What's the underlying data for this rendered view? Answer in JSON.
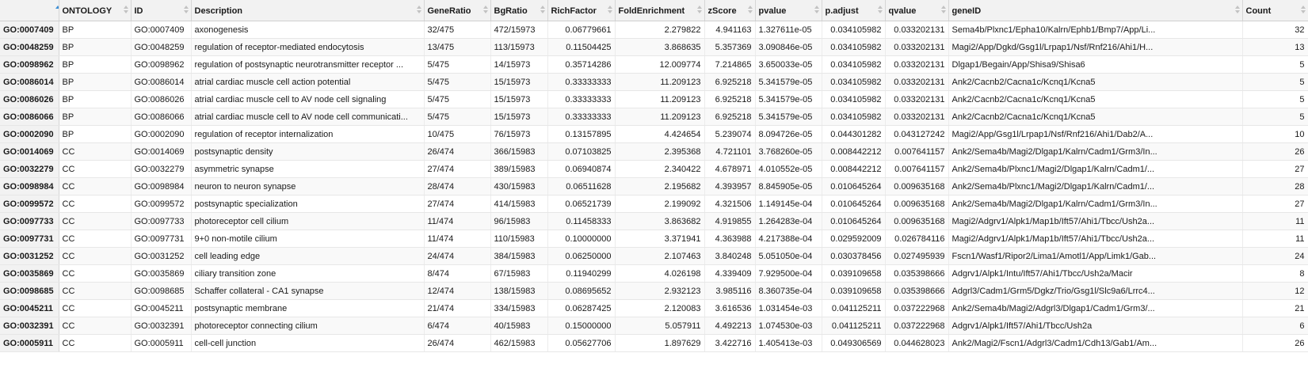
{
  "columns": [
    {
      "key": "rowname",
      "label": "",
      "align": "left",
      "width": 74
    },
    {
      "key": "ontology",
      "label": "ONTOLOGY",
      "align": "left",
      "width": 91
    },
    {
      "key": "id",
      "label": "ID",
      "align": "left",
      "width": 76
    },
    {
      "key": "description",
      "label": "Description",
      "align": "left",
      "width": 294
    },
    {
      "key": "generatio",
      "label": "GeneRatio",
      "align": "left",
      "width": 84
    },
    {
      "key": "bgratio",
      "label": "BgRatio",
      "align": "left",
      "width": 72
    },
    {
      "key": "richfactor",
      "label": "RichFactor",
      "align": "right",
      "width": 85
    },
    {
      "key": "foldenrichment",
      "label": "FoldEnrichment",
      "align": "right",
      "width": 113
    },
    {
      "key": "zscore",
      "label": "zScore",
      "align": "right",
      "width": 64
    },
    {
      "key": "pvalue",
      "label": "pvalue",
      "align": "left",
      "width": 84
    },
    {
      "key": "padjust",
      "label": "p.adjust",
      "align": "right",
      "width": 80
    },
    {
      "key": "qvalue",
      "label": "qvalue",
      "align": "right",
      "width": 80
    },
    {
      "key": "geneid",
      "label": "geneID",
      "align": "left",
      "width": 371
    },
    {
      "key": "count",
      "label": "Count",
      "align": "right",
      "width": 83
    }
  ],
  "rows": [
    {
      "rowname": "GO:0007409",
      "ontology": "BP",
      "id": "GO:0007409",
      "description": "axonogenesis",
      "generatio": "32/475",
      "bgratio": "472/15973",
      "richfactor": "0.06779661",
      "foldenrichment": "2.279822",
      "zscore": "4.941163",
      "pvalue": "1.327611e-05",
      "padjust": "0.034105982",
      "qvalue": "0.033202131",
      "geneid": "Sema4b/Plxnc1/Epha10/Kalrn/Ephb1/Bmp7/App/Li...",
      "count": "32"
    },
    {
      "rowname": "GO:0048259",
      "ontology": "BP",
      "id": "GO:0048259",
      "description": "regulation of receptor-mediated endocytosis",
      "generatio": "13/475",
      "bgratio": "113/15973",
      "richfactor": "0.11504425",
      "foldenrichment": "3.868635",
      "zscore": "5.357369",
      "pvalue": "3.090846e-05",
      "padjust": "0.034105982",
      "qvalue": "0.033202131",
      "geneid": "Magi2/App/Dgkd/Gsg1l/Lrpap1/Nsf/Rnf216/Ahi1/H...",
      "count": "13"
    },
    {
      "rowname": "GO:0098962",
      "ontology": "BP",
      "id": "GO:0098962",
      "description": "regulation of postsynaptic neurotransmitter receptor ...",
      "generatio": "5/475",
      "bgratio": "14/15973",
      "richfactor": "0.35714286",
      "foldenrichment": "12.009774",
      "zscore": "7.214865",
      "pvalue": "3.650033e-05",
      "padjust": "0.034105982",
      "qvalue": "0.033202131",
      "geneid": "Dlgap1/Begain/App/Shisa9/Shisa6",
      "count": "5"
    },
    {
      "rowname": "GO:0086014",
      "ontology": "BP",
      "id": "GO:0086014",
      "description": "atrial cardiac muscle cell action potential",
      "generatio": "5/475",
      "bgratio": "15/15973",
      "richfactor": "0.33333333",
      "foldenrichment": "11.209123",
      "zscore": "6.925218",
      "pvalue": "5.341579e-05",
      "padjust": "0.034105982",
      "qvalue": "0.033202131",
      "geneid": "Ank2/Cacnb2/Cacna1c/Kcnq1/Kcna5",
      "count": "5"
    },
    {
      "rowname": "GO:0086026",
      "ontology": "BP",
      "id": "GO:0086026",
      "description": "atrial cardiac muscle cell to AV node cell signaling",
      "generatio": "5/475",
      "bgratio": "15/15973",
      "richfactor": "0.33333333",
      "foldenrichment": "11.209123",
      "zscore": "6.925218",
      "pvalue": "5.341579e-05",
      "padjust": "0.034105982",
      "qvalue": "0.033202131",
      "geneid": "Ank2/Cacnb2/Cacna1c/Kcnq1/Kcna5",
      "count": "5"
    },
    {
      "rowname": "GO:0086066",
      "ontology": "BP",
      "id": "GO:0086066",
      "description": "atrial cardiac muscle cell to AV node cell communicati...",
      "generatio": "5/475",
      "bgratio": "15/15973",
      "richfactor": "0.33333333",
      "foldenrichment": "11.209123",
      "zscore": "6.925218",
      "pvalue": "5.341579e-05",
      "padjust": "0.034105982",
      "qvalue": "0.033202131",
      "geneid": "Ank2/Cacnb2/Cacna1c/Kcnq1/Kcna5",
      "count": "5"
    },
    {
      "rowname": "GO:0002090",
      "ontology": "BP",
      "id": "GO:0002090",
      "description": "regulation of receptor internalization",
      "generatio": "10/475",
      "bgratio": "76/15973",
      "richfactor": "0.13157895",
      "foldenrichment": "4.424654",
      "zscore": "5.239074",
      "pvalue": "8.094726e-05",
      "padjust": "0.044301282",
      "qvalue": "0.043127242",
      "geneid": "Magi2/App/Gsg1l/Lrpap1/Nsf/Rnf216/Ahi1/Dab2/A...",
      "count": "10"
    },
    {
      "rowname": "GO:0014069",
      "ontology": "CC",
      "id": "GO:0014069",
      "description": "postsynaptic density",
      "generatio": "26/474",
      "bgratio": "366/15983",
      "richfactor": "0.07103825",
      "foldenrichment": "2.395368",
      "zscore": "4.721101",
      "pvalue": "3.768260e-05",
      "padjust": "0.008442212",
      "qvalue": "0.007641157",
      "geneid": "Ank2/Sema4b/Magi2/Dlgap1/Kalrn/Cadm1/Grm3/In...",
      "count": "26"
    },
    {
      "rowname": "GO:0032279",
      "ontology": "CC",
      "id": "GO:0032279",
      "description": "asymmetric synapse",
      "generatio": "27/474",
      "bgratio": "389/15983",
      "richfactor": "0.06940874",
      "foldenrichment": "2.340422",
      "zscore": "4.678971",
      "pvalue": "4.010552e-05",
      "padjust": "0.008442212",
      "qvalue": "0.007641157",
      "geneid": "Ank2/Sema4b/Plxnc1/Magi2/Dlgap1/Kalrn/Cadm1/...",
      "count": "27"
    },
    {
      "rowname": "GO:0098984",
      "ontology": "CC",
      "id": "GO:0098984",
      "description": "neuron to neuron synapse",
      "generatio": "28/474",
      "bgratio": "430/15983",
      "richfactor": "0.06511628",
      "foldenrichment": "2.195682",
      "zscore": "4.393957",
      "pvalue": "8.845905e-05",
      "padjust": "0.010645264",
      "qvalue": "0.009635168",
      "geneid": "Ank2/Sema4b/Plxnc1/Magi2/Dlgap1/Kalrn/Cadm1/...",
      "count": "28"
    },
    {
      "rowname": "GO:0099572",
      "ontology": "CC",
      "id": "GO:0099572",
      "description": "postsynaptic specialization",
      "generatio": "27/474",
      "bgratio": "414/15983",
      "richfactor": "0.06521739",
      "foldenrichment": "2.199092",
      "zscore": "4.321506",
      "pvalue": "1.149145e-04",
      "padjust": "0.010645264",
      "qvalue": "0.009635168",
      "geneid": "Ank2/Sema4b/Magi2/Dlgap1/Kalrn/Cadm1/Grm3/In...",
      "count": "27"
    },
    {
      "rowname": "GO:0097733",
      "ontology": "CC",
      "id": "GO:0097733",
      "description": "photoreceptor cell cilium",
      "generatio": "11/474",
      "bgratio": "96/15983",
      "richfactor": "0.11458333",
      "foldenrichment": "3.863682",
      "zscore": "4.919855",
      "pvalue": "1.264283e-04",
      "padjust": "0.010645264",
      "qvalue": "0.009635168",
      "geneid": "Magi2/Adgrv1/Alpk1/Map1b/Ift57/Ahi1/Tbcc/Ush2a...",
      "count": "11"
    },
    {
      "rowname": "GO:0097731",
      "ontology": "CC",
      "id": "GO:0097731",
      "description": "9+0 non-motile cilium",
      "generatio": "11/474",
      "bgratio": "110/15983",
      "richfactor": "0.10000000",
      "foldenrichment": "3.371941",
      "zscore": "4.363988",
      "pvalue": "4.217388e-04",
      "padjust": "0.029592009",
      "qvalue": "0.026784116",
      "geneid": "Magi2/Adgrv1/Alpk1/Map1b/Ift57/Ahi1/Tbcc/Ush2a...",
      "count": "11"
    },
    {
      "rowname": "GO:0031252",
      "ontology": "CC",
      "id": "GO:0031252",
      "description": "cell leading edge",
      "generatio": "24/474",
      "bgratio": "384/15983",
      "richfactor": "0.06250000",
      "foldenrichment": "2.107463",
      "zscore": "3.840248",
      "pvalue": "5.051050e-04",
      "padjust": "0.030378456",
      "qvalue": "0.027495939",
      "geneid": "Fscn1/Wasf1/Ripor2/Lima1/Amotl1/App/Limk1/Gab...",
      "count": "24"
    },
    {
      "rowname": "GO:0035869",
      "ontology": "CC",
      "id": "GO:0035869",
      "description": "ciliary transition zone",
      "generatio": "8/474",
      "bgratio": "67/15983",
      "richfactor": "0.11940299",
      "foldenrichment": "4.026198",
      "zscore": "4.339409",
      "pvalue": "7.929500e-04",
      "padjust": "0.039109658",
      "qvalue": "0.035398666",
      "geneid": "Adgrv1/Alpk1/Intu/Ift57/Ahi1/Tbcc/Ush2a/Macir",
      "count": "8"
    },
    {
      "rowname": "GO:0098685",
      "ontology": "CC",
      "id": "GO:0098685",
      "description": "Schaffer collateral - CA1 synapse",
      "generatio": "12/474",
      "bgratio": "138/15983",
      "richfactor": "0.08695652",
      "foldenrichment": "2.932123",
      "zscore": "3.985116",
      "pvalue": "8.360735e-04",
      "padjust": "0.039109658",
      "qvalue": "0.035398666",
      "geneid": "Adgrl3/Cadm1/Grm5/Dgkz/Trio/Gsg1l/Slc9a6/Lrrc4...",
      "count": "12"
    },
    {
      "rowname": "GO:0045211",
      "ontology": "CC",
      "id": "GO:0045211",
      "description": "postsynaptic membrane",
      "generatio": "21/474",
      "bgratio": "334/15983",
      "richfactor": "0.06287425",
      "foldenrichment": "2.120083",
      "zscore": "3.616536",
      "pvalue": "1.031454e-03",
      "padjust": "0.041125211",
      "qvalue": "0.037222968",
      "geneid": "Ank2/Sema4b/Magi2/Adgrl3/Dlgap1/Cadm1/Grm3/...",
      "count": "21"
    },
    {
      "rowname": "GO:0032391",
      "ontology": "CC",
      "id": "GO:0032391",
      "description": "photoreceptor connecting cilium",
      "generatio": "6/474",
      "bgratio": "40/15983",
      "richfactor": "0.15000000",
      "foldenrichment": "5.057911",
      "zscore": "4.492213",
      "pvalue": "1.074530e-03",
      "padjust": "0.041125211",
      "qvalue": "0.037222968",
      "geneid": "Adgrv1/Alpk1/Ift57/Ahi1/Tbcc/Ush2a",
      "count": "6"
    },
    {
      "rowname": "GO:0005911",
      "ontology": "CC",
      "id": "GO:0005911",
      "description": "cell-cell junction",
      "generatio": "26/474",
      "bgratio": "462/15983",
      "richfactor": "0.05627706",
      "foldenrichment": "1.897629",
      "zscore": "3.422716",
      "pvalue": "1.405413e-03",
      "padjust": "0.049306569",
      "qvalue": "0.044628023",
      "geneid": "Ank2/Magi2/Fscn1/Adgrl3/Cadm1/Cdh13/Gab1/Am...",
      "count": "26"
    }
  ],
  "sort": {
    "column": "rowname",
    "direction": "ascending",
    "indicator_color": "#3d8fd6"
  }
}
